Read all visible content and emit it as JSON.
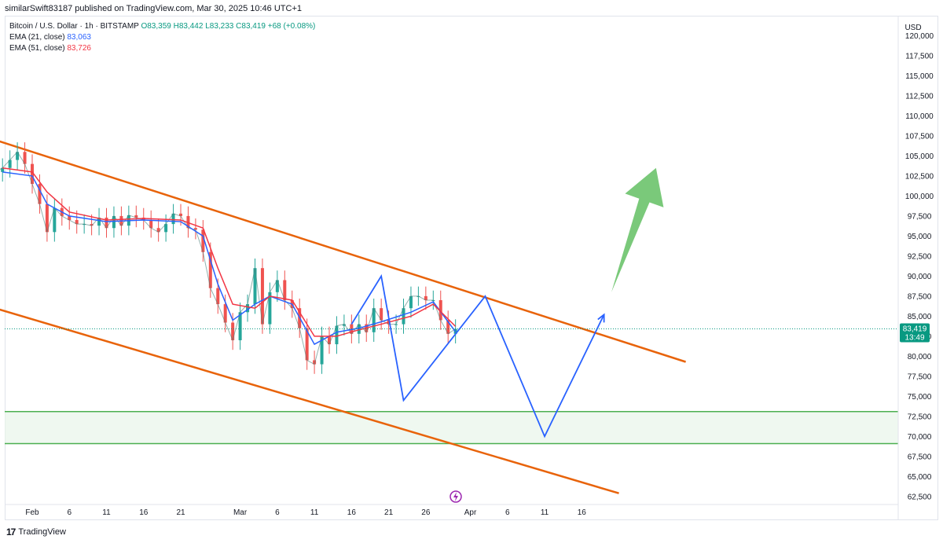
{
  "header": {
    "published_by": "similarSwift83187 published on TradingView.com, Mar 30, 2025 10:46 UTC+1"
  },
  "legend": {
    "symbol": "Bitcoin / U.S. Dollar · 1h · BITSTAMP",
    "open": "O83,359",
    "high": "H83,442",
    "low": "L83,233",
    "close": "C83,419",
    "change": "+68 (+0.08%)",
    "ema21_label": "EMA (21, close)",
    "ema21_value": "83,063",
    "ema51_label": "EMA (51, close)",
    "ema51_value": "83,726"
  },
  "footer": {
    "brand": "TradingView"
  },
  "chart_data": {
    "type": "line",
    "currency_label": "USD",
    "last_price_label": "83,419",
    "countdown_label": "13:49",
    "ylim": [
      61500,
      122500
    ],
    "y_ticks": [
      "120,000",
      "117,500",
      "115,000",
      "112,500",
      "110,000",
      "107,500",
      "105,000",
      "102,500",
      "100,000",
      "97,500",
      "95,000",
      "92,500",
      "90,000",
      "87,500",
      "85,000",
      "82,500",
      "80,000",
      "77,500",
      "75,000",
      "72,500",
      "70,000",
      "67,500",
      "65,000",
      "62,500"
    ],
    "x_ticks": [
      "Feb",
      "6",
      "11",
      "16",
      "21",
      "Mar",
      "6",
      "11",
      "16",
      "21",
      "26",
      "Apr",
      "6",
      "11",
      "16"
    ],
    "price_series": {
      "name": "BTCUSD 1h",
      "points": [
        [
          "Jan 27",
          103000
        ],
        [
          "Jan 28",
          103500
        ],
        [
          "Jan 29",
          104500
        ],
        [
          "Jan 30",
          105500
        ],
        [
          "Jan 31",
          104000
        ],
        [
          "Feb 1",
          101500
        ],
        [
          "Feb 2",
          99000
        ],
        [
          "Feb 3",
          95500
        ],
        [
          "Feb 4",
          98500
        ],
        [
          "Feb 5",
          97500
        ],
        [
          "Feb 6",
          97000
        ],
        [
          "Feb 7",
          96500
        ],
        [
          "Feb 8",
          96500
        ],
        [
          "Feb 9",
          96300
        ],
        [
          "Feb 10",
          97300
        ],
        [
          "Feb 11",
          96000
        ],
        [
          "Feb 12",
          97500
        ],
        [
          "Feb 13",
          96300
        ],
        [
          "Feb 14",
          97600
        ],
        [
          "Feb 15",
          97300
        ],
        [
          "Feb 16",
          97000
        ],
        [
          "Feb 17",
          96000
        ],
        [
          "Feb 18",
          95500
        ],
        [
          "Feb 19",
          96500
        ],
        [
          "Feb 20",
          97800
        ],
        [
          "Feb 21",
          97500
        ],
        [
          "Feb 22",
          96000
        ],
        [
          "Feb 23",
          95800
        ],
        [
          "Feb 24",
          93000
        ],
        [
          "Feb 25",
          88500
        ],
        [
          "Feb 26",
          86500
        ],
        [
          "Feb 27",
          84200
        ],
        [
          "Feb 28",
          82000
        ],
        [
          "Mar 1",
          85500
        ],
        [
          "Mar 2",
          86500
        ],
        [
          "Mar 3",
          91000
        ],
        [
          "Mar 4",
          84000
        ],
        [
          "Mar 5",
          88000
        ],
        [
          "Mar 6",
          89500
        ],
        [
          "Mar 7",
          87000
        ],
        [
          "Mar 8",
          86000
        ],
        [
          "Mar 9",
          83500
        ],
        [
          "Mar 10",
          79500
        ],
        [
          "Mar 11",
          79000
        ],
        [
          "Mar 12",
          82500
        ],
        [
          "Mar 13",
          81500
        ],
        [
          "Mar 14",
          83800
        ],
        [
          "Mar 15",
          84000
        ],
        [
          "Mar 16",
          82800
        ],
        [
          "Mar 17",
          84000
        ],
        [
          "Mar 18",
          83000
        ],
        [
          "Mar 19",
          86000
        ],
        [
          "Mar 20",
          84500
        ],
        [
          "Mar 21",
          84000
        ],
        [
          "Mar 22",
          84000
        ],
        [
          "Mar 23",
          86000
        ],
        [
          "Mar 24",
          87500
        ],
        [
          "Mar 25",
          87500
        ],
        [
          "Mar 26",
          87000
        ],
        [
          "Mar 27",
          87000
        ],
        [
          "Mar 28",
          84500
        ],
        [
          "Mar 29",
          82800
        ],
        [
          "Mar 30",
          83419
        ]
      ]
    },
    "ema_series": [
      {
        "name": "EMA (21, close)",
        "color": "#2962ff",
        "points": [
          [
            "Jan 28",
            103000
          ],
          [
            "Feb 1",
            102500
          ],
          [
            "Feb 3",
            99000
          ],
          [
            "Feb 6",
            97500
          ],
          [
            "Feb 11",
            96800
          ],
          [
            "Feb 16",
            97000
          ],
          [
            "Feb 21",
            96800
          ],
          [
            "Feb 24",
            95000
          ],
          [
            "Feb 26",
            89000
          ],
          [
            "Feb 28",
            84500
          ],
          [
            "Mar 3",
            86500
          ],
          [
            "Mar 5",
            87500
          ],
          [
            "Mar 8",
            86500
          ],
          [
            "Mar 11",
            81500
          ],
          [
            "Mar 14",
            83000
          ],
          [
            "Mar 17",
            83500
          ],
          [
            "Mar 20",
            84300
          ],
          [
            "Mar 24",
            85500
          ],
          [
            "Mar 27",
            86800
          ],
          [
            "Mar 30",
            83063
          ]
        ]
      },
      {
        "name": "EMA (51, close)",
        "color": "#f23645",
        "points": [
          [
            "Jan 28",
            103500
          ],
          [
            "Feb 1",
            103000
          ],
          [
            "Feb 3",
            100500
          ],
          [
            "Feb 6",
            98000
          ],
          [
            "Feb 11",
            97000
          ],
          [
            "Feb 16",
            97200
          ],
          [
            "Feb 21",
            97000
          ],
          [
            "Feb 24",
            96000
          ],
          [
            "Feb 26",
            91000
          ],
          [
            "Feb 28",
            86500
          ],
          [
            "Mar 3",
            86000
          ],
          [
            "Mar 5",
            87500
          ],
          [
            "Mar 8",
            87000
          ],
          [
            "Mar 11",
            82500
          ],
          [
            "Mar 14",
            82500
          ],
          [
            "Mar 17",
            83300
          ],
          [
            "Mar 20",
            84000
          ],
          [
            "Mar 24",
            85000
          ],
          [
            "Mar 27",
            86500
          ],
          [
            "Mar 30",
            83726
          ]
        ]
      }
    ],
    "channel_lines": [
      {
        "color": "#e8630a",
        "from": [
          "Jan 27",
          107000
        ],
        "to": [
          "Apr 30",
          79300
        ]
      },
      {
        "color": "#e8630a",
        "from": [
          "Jan 27",
          86000
        ],
        "to": [
          "Apr 21",
          62900
        ]
      }
    ],
    "support_zone": {
      "low": 69100,
      "high": 73100,
      "color": "#4caf50"
    },
    "projection_path": {
      "color": "#2962ff",
      "points": [
        [
          "Mar 16",
          84000
        ],
        [
          "Mar 20",
          90000
        ],
        [
          "Mar 23",
          74500
        ],
        [
          "Apr 3",
          87500
        ],
        [
          "Apr 11",
          70000
        ],
        [
          "Apr 19",
          85200
        ]
      ]
    },
    "arrow": {
      "color": "#6cc36c",
      "from": [
        "Apr 20",
        88000
      ],
      "to": [
        "Apr 26",
        103500
      ]
    },
    "grid": false
  }
}
